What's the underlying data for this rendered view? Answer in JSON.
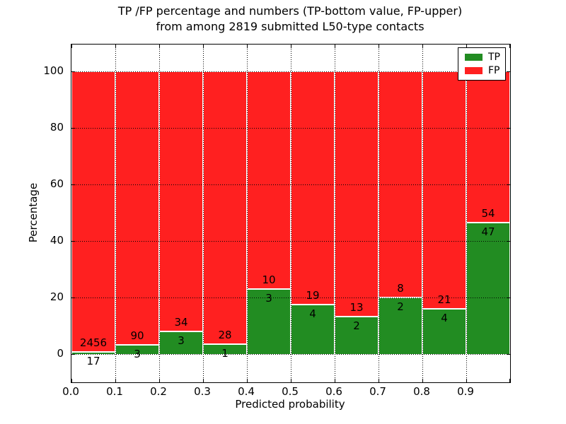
{
  "chart_data": {
    "type": "bar",
    "stacked": true,
    "normalized_to": 100,
    "title_lines": [
      "TP /FP percentage and numbers (TP-bottom value, FP-upper)",
      "from among 2819 submitted L50-type contacts"
    ],
    "xlabel": "Predicted probability",
    "ylabel": "Percentage",
    "bin_starts": [
      0.0,
      0.1,
      0.2,
      0.3,
      0.4,
      0.5,
      0.6,
      0.7,
      0.8,
      0.9
    ],
    "bin_width": 0.1,
    "series": [
      {
        "name": "TP",
        "color": "#228c22",
        "counts": [
          17,
          3,
          3,
          1,
          3,
          4,
          2,
          2,
          4,
          47
        ]
      },
      {
        "name": "FP",
        "color": "#ff2020",
        "counts": [
          2456,
          90,
          34,
          28,
          10,
          19,
          13,
          8,
          21,
          54
        ]
      }
    ],
    "bar_rule": "green bottom segment height = TP/(TP+FP)*100 %, red fills up to 100 %; FP count printed above the boundary, TP count below",
    "tp_percentages": [
      0.69,
      3.23,
      8.11,
      3.45,
      23.08,
      17.39,
      13.33,
      20.0,
      16.0,
      46.53
    ],
    "xlim": [
      0.0,
      1.0
    ],
    "ylim": [
      -10,
      109.5
    ],
    "xtick_labels": [
      "0.0",
      "0.1",
      "0.2",
      "0.3",
      "0.4",
      "0.5",
      "0.6",
      "0.7",
      "0.8",
      "0.9"
    ],
    "xtick_values": [
      0.0,
      0.1,
      0.2,
      0.3,
      0.4,
      0.5,
      0.6,
      0.7,
      0.8,
      0.9,
      1.0
    ],
    "ytick_labels": [
      "0",
      "20",
      "40",
      "60",
      "80",
      "100"
    ],
    "ytick_values": [
      0,
      20,
      40,
      60,
      80,
      100
    ],
    "grid": "dotted black, drawn above bars",
    "legend": {
      "position": "upper right",
      "entries": [
        {
          "label": "TP",
          "color": "#228c22"
        },
        {
          "label": "FP",
          "color": "#ff2020"
        }
      ]
    },
    "colors": {
      "tp_green": "#228c22",
      "fp_red": "#ff2020",
      "bar_edge": "#ffffff",
      "axes": "#000000",
      "background": "#ffffff"
    }
  }
}
